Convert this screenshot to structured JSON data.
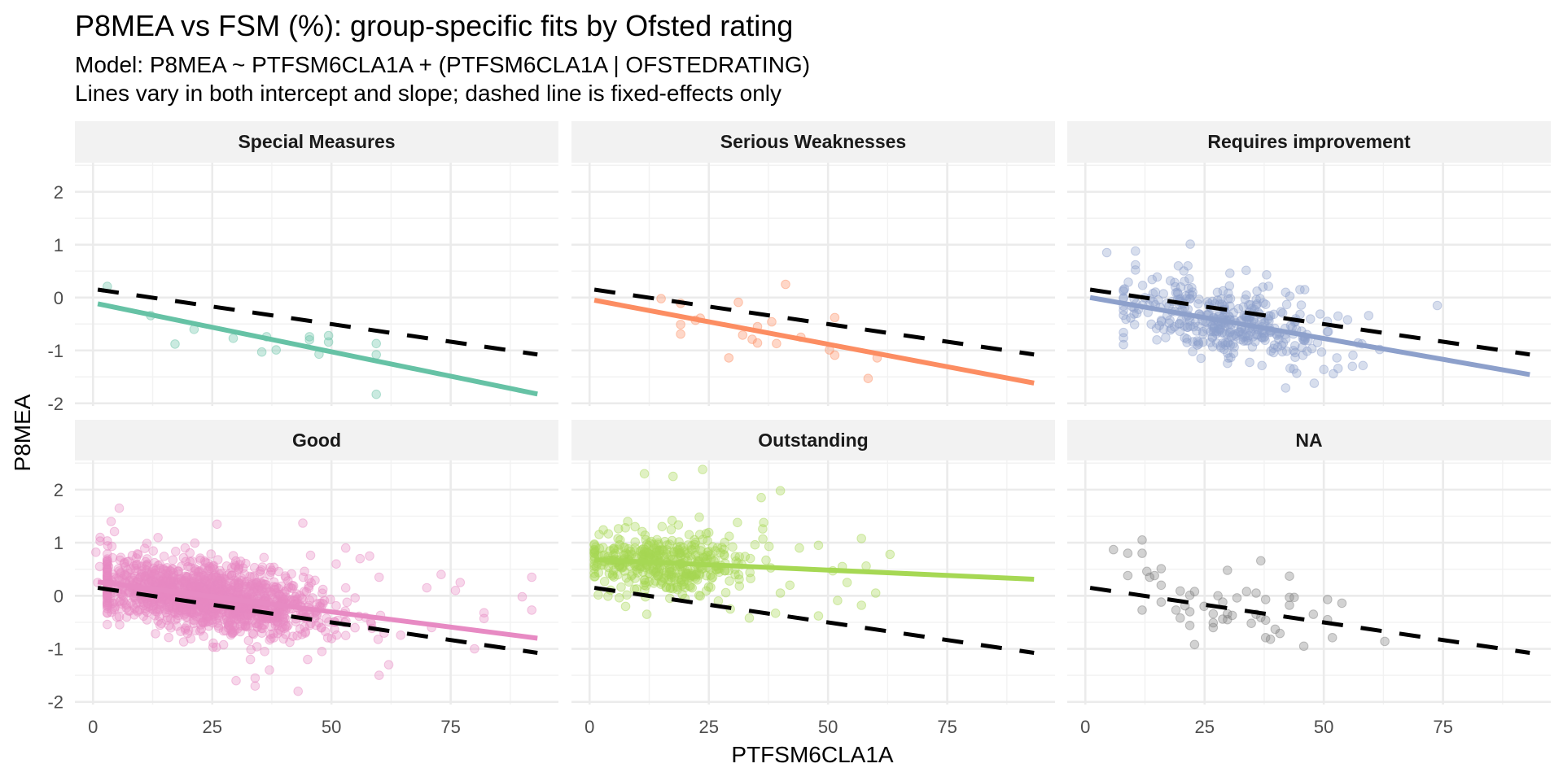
{
  "chart_data": {
    "type": "scatter",
    "title": "P8MEA vs FSM (%): group-specific fits by Ofsted rating",
    "subtitle_lines": [
      "Model: P8MEA ~ PTFSM6CLA1A + (PTFSM6CLA1A | OFSTEDRATING)",
      "Lines vary in both intercept and slope; dashed line is fixed-effects only"
    ],
    "xlabel": "PTFSM6CLA1A",
    "ylabel": "P8MEA",
    "xlim": [
      -3.8,
      97.6
    ],
    "ylim": [
      -2.05,
      2.55
    ],
    "x_ticks": [
      0,
      25,
      50,
      75
    ],
    "x_tick_labels": [
      "0",
      "25",
      "50",
      "75"
    ],
    "y_ticks": [
      -2,
      -1,
      0,
      1,
      2
    ],
    "y_tick_labels": [
      "-2",
      "-1",
      "0",
      "1",
      "2"
    ],
    "grid": true,
    "facet_layout": {
      "rows": 2,
      "cols": 3
    },
    "point_alpha": 0.35,
    "fixed_effect_line": {
      "style": "dashed",
      "color": "#000000",
      "intercept": 0.163,
      "slope": -0.0133,
      "x_range": [
        1,
        93.2
      ]
    },
    "panels": [
      {
        "label": "Special Measures",
        "color": "#66c2a5",
        "fit_line": {
          "intercept": -0.1,
          "slope": -0.0185,
          "x_range": [
            1,
            93.2
          ]
        },
        "points": [
          [
            3.0,
            0.21
          ],
          [
            12.1,
            -0.34
          ],
          [
            17.2,
            -0.88
          ],
          [
            21.2,
            -0.6
          ],
          [
            29.4,
            -0.77
          ],
          [
            35.4,
            -1.03
          ],
          [
            36.4,
            -0.74
          ],
          [
            38.4,
            -0.99
          ],
          [
            45.4,
            -0.74
          ],
          [
            45.4,
            -0.8
          ],
          [
            47.4,
            -1.07
          ],
          [
            49.4,
            -0.72
          ],
          [
            49.4,
            -0.84
          ],
          [
            59.4,
            -0.87
          ],
          [
            59.4,
            -1.08
          ],
          [
            59.4,
            -1.83
          ]
        ]
      },
      {
        "label": "Serious Weaknesses",
        "color": "#fc8d62",
        "fit_line": {
          "intercept": -0.033,
          "slope": -0.017,
          "x_range": [
            1,
            93.2
          ]
        },
        "points": [
          [
            15.0,
            -0.02
          ],
          [
            19.1,
            -0.11
          ],
          [
            19.1,
            -0.51
          ],
          [
            19.1,
            -0.69
          ],
          [
            22.2,
            -0.43
          ],
          [
            23.2,
            -0.39
          ],
          [
            31.2,
            -0.09
          ],
          [
            29.2,
            -1.14
          ],
          [
            32.1,
            -0.71
          ],
          [
            34.1,
            -0.79
          ],
          [
            35.2,
            -0.55
          ],
          [
            35.2,
            -0.86
          ],
          [
            38.2,
            -0.46
          ],
          [
            39.2,
            -0.87
          ],
          [
            41.1,
            0.25
          ],
          [
            44.3,
            -0.75
          ],
          [
            50.3,
            -0.99
          ],
          [
            51.4,
            -0.38
          ],
          [
            51.4,
            -1.09
          ],
          [
            58.4,
            -1.53
          ],
          [
            60.3,
            -1.14
          ]
        ]
      },
      {
        "label": "Requires improvement",
        "color": "#8da0cb",
        "fit_line": {
          "intercept": 0.016,
          "slope": -0.0158,
          "x_range": [
            1,
            93.2
          ]
        },
        "points": [
          [
            4.5,
            0.85
          ],
          [
            10.5,
            0.88
          ],
          [
            10.5,
            0.62
          ],
          [
            10.5,
            0.52
          ],
          [
            22.0,
            1.01
          ],
          [
            19.5,
            0.6
          ],
          [
            21.5,
            0.6
          ],
          [
            9.0,
            0.29
          ],
          [
            12.0,
            0.23
          ],
          [
            14.0,
            0.34
          ],
          [
            20.0,
            0.2
          ],
          [
            38.0,
            0.43
          ],
          [
            36.0,
            0.12
          ],
          [
            42.0,
            0.1
          ],
          [
            45.0,
            0.15
          ],
          [
            46.0,
            0.15
          ],
          [
            73.8,
            -0.15
          ],
          [
            53.0,
            -0.35
          ],
          [
            55.0,
            -0.42
          ],
          [
            15.0,
            -0.8
          ],
          [
            22.5,
            -1.02
          ],
          [
            30.0,
            -0.86
          ],
          [
            44.0,
            -1.04
          ],
          [
            44.0,
            -1.13
          ],
          [
            46.0,
            -0.81
          ],
          [
            50.0,
            -1.36
          ],
          [
            52.0,
            -1.44
          ],
          [
            53.0,
            -1.34
          ],
          [
            56.0,
            -1.3
          ],
          [
            42.0,
            -1.71
          ],
          [
            48.0,
            -1.62
          ],
          [
            8.5,
            -0.41
          ],
          [
            12.0,
            -0.14
          ]
        ],
        "generated": {
          "n": 360,
          "x_mean": 30,
          "x_sd": 11,
          "x_min": 8,
          "x_max": 62,
          "noise_sd": 0.33,
          "seed": 31
        }
      },
      {
        "label": "Good",
        "color": "#e78ac3",
        "fit_line": {
          "intercept": 0.272,
          "slope": -0.0115,
          "x_range": [
            1,
            93.2
          ]
        },
        "points": [
          [
            5.5,
            1.65
          ],
          [
            3.8,
            1.4
          ],
          [
            4.5,
            1.21
          ],
          [
            1.5,
            1.1
          ],
          [
            1.5,
            1.03
          ],
          [
            0.6,
            0.82
          ],
          [
            1.4,
            0.55
          ],
          [
            1.0,
            0.25
          ],
          [
            3.0,
            -0.2
          ],
          [
            4.5,
            -0.25
          ],
          [
            5.0,
            -0.4
          ],
          [
            26.0,
            1.35
          ],
          [
            44.0,
            1.37
          ],
          [
            36.0,
            -1.05
          ],
          [
            33.0,
            -1.2
          ],
          [
            37.0,
            -1.4
          ],
          [
            34.0,
            -1.55
          ],
          [
            30.0,
            -1.6
          ],
          [
            34.0,
            -1.7
          ],
          [
            43.0,
            -1.8
          ],
          [
            48.0,
            -1.05
          ],
          [
            45.0,
            -1.2
          ],
          [
            53.0,
            -0.75
          ],
          [
            60.0,
            -1.5
          ],
          [
            62.0,
            -1.3
          ],
          [
            71.0,
            -0.6
          ],
          [
            73.0,
            0.4
          ],
          [
            70.0,
            0.15
          ],
          [
            77.0,
            0.25
          ],
          [
            76.0,
            0.1
          ],
          [
            82.0,
            -0.32
          ],
          [
            82.0,
            -0.43
          ],
          [
            80.0,
            -1.0
          ],
          [
            90.0,
            -0.02
          ],
          [
            92.0,
            0.35
          ],
          [
            92.0,
            -0.27
          ],
          [
            56.0,
            0.7
          ],
          [
            58.0,
            0.75
          ],
          [
            60.0,
            0.35
          ],
          [
            53.0,
            0.9
          ],
          [
            51.0,
            0.6
          ]
        ],
        "generated": {
          "n": 1500,
          "x_mean": 24,
          "x_sd": 12,
          "x_min": 3,
          "x_max": 66,
          "noise_sd": 0.3,
          "seed": 7
        }
      },
      {
        "label": "Outstanding",
        "color": "#a6d854",
        "fit_line": {
          "intercept": 0.684,
          "slope": -0.004,
          "x_range": [
            1,
            93.2
          ]
        },
        "points": [
          [
            11.5,
            2.3
          ],
          [
            17.5,
            2.25
          ],
          [
            23.7,
            2.38
          ],
          [
            36.0,
            1.85
          ],
          [
            40.0,
            1.98
          ],
          [
            36.5,
            1.38
          ],
          [
            36.3,
            1.26
          ],
          [
            23.0,
            1.48
          ],
          [
            31.0,
            1.38
          ],
          [
            17.3,
            1.42
          ],
          [
            8.0,
            1.4
          ],
          [
            7.5,
            1.28
          ],
          [
            57.0,
            1.08
          ],
          [
            63.0,
            0.78
          ],
          [
            53.0,
            0.55
          ],
          [
            58.0,
            0.56
          ],
          [
            48.0,
            0.95
          ],
          [
            37.0,
            0.67
          ],
          [
            44.0,
            0.9
          ],
          [
            30.0,
            0.92
          ],
          [
            20.0,
            -0.05
          ],
          [
            12.0,
            -0.35
          ],
          [
            27.0,
            -0.1
          ],
          [
            33.5,
            -0.42
          ],
          [
            48.0,
            -0.38
          ],
          [
            57.0,
            -0.18
          ],
          [
            52.0,
            -0.09
          ],
          [
            54.0,
            0.25
          ],
          [
            60.0,
            0.05
          ],
          [
            51.0,
            0.47
          ],
          [
            40.0,
            0.05
          ],
          [
            42.0,
            0.2
          ],
          [
            29.5,
            -0.25
          ],
          [
            39.0,
            -0.33
          ]
        ],
        "generated": {
          "n": 420,
          "x_mean": 15,
          "x_sd": 9,
          "x_min": 1,
          "x_max": 55,
          "noise_sd": 0.28,
          "seed": 19
        }
      },
      {
        "label": "NA",
        "color": "#7f7f7f",
        "fit_line": null,
        "points": [
          [
            5.9,
            0.87
          ],
          [
            8.9,
            0.8
          ],
          [
            11.9,
            1.05
          ],
          [
            11.9,
            0.8
          ],
          [
            8.9,
            0.38
          ],
          [
            12.9,
            0.46
          ],
          [
            15.9,
            0.51
          ],
          [
            13.5,
            0.35
          ],
          [
            14.5,
            0.38
          ],
          [
            15.9,
            0.2
          ],
          [
            11.9,
            -0.27
          ],
          [
            15.9,
            -0.12
          ],
          [
            19.9,
            0.09
          ],
          [
            19.0,
            -0.27
          ],
          [
            19.9,
            -0.42
          ],
          [
            20.9,
            -0.19
          ],
          [
            21.9,
            0.01
          ],
          [
            21.9,
            -0.3
          ],
          [
            22.9,
            0.08
          ],
          [
            21.9,
            -0.56
          ],
          [
            22.9,
            -0.92
          ],
          [
            24.9,
            -0.2
          ],
          [
            26.8,
            -0.34
          ],
          [
            26.8,
            -0.51
          ],
          [
            26.8,
            -0.6
          ],
          [
            27.8,
            0.0
          ],
          [
            28.8,
            -0.12
          ],
          [
            28.8,
            -0.44
          ],
          [
            29.8,
            -0.45
          ],
          [
            29.8,
            -0.34
          ],
          [
            30.8,
            -0.37
          ],
          [
            29.8,
            0.48
          ],
          [
            31.8,
            -0.04
          ],
          [
            33.8,
            0.08
          ],
          [
            35.8,
            0.05
          ],
          [
            35.8,
            -0.35
          ],
          [
            34.8,
            -0.52
          ],
          [
            36.8,
            0.66
          ],
          [
            36.8,
            -0.41
          ],
          [
            37.8,
            -0.46
          ],
          [
            37.8,
            -0.07
          ],
          [
            37.8,
            -0.79
          ],
          [
            38.8,
            -0.82
          ],
          [
            39.8,
            -0.63
          ],
          [
            40.8,
            -0.71
          ],
          [
            42.8,
            0.37
          ],
          [
            42.8,
            -0.03
          ],
          [
            43.8,
            -0.03
          ],
          [
            42.8,
            -0.18
          ],
          [
            45.8,
            -0.95
          ],
          [
            47.8,
            -0.35
          ],
          [
            50.8,
            -0.07
          ],
          [
            50.8,
            -0.45
          ],
          [
            51.8,
            -0.79
          ],
          [
            53.8,
            -0.14
          ],
          [
            62.8,
            -0.86
          ]
        ]
      }
    ]
  }
}
